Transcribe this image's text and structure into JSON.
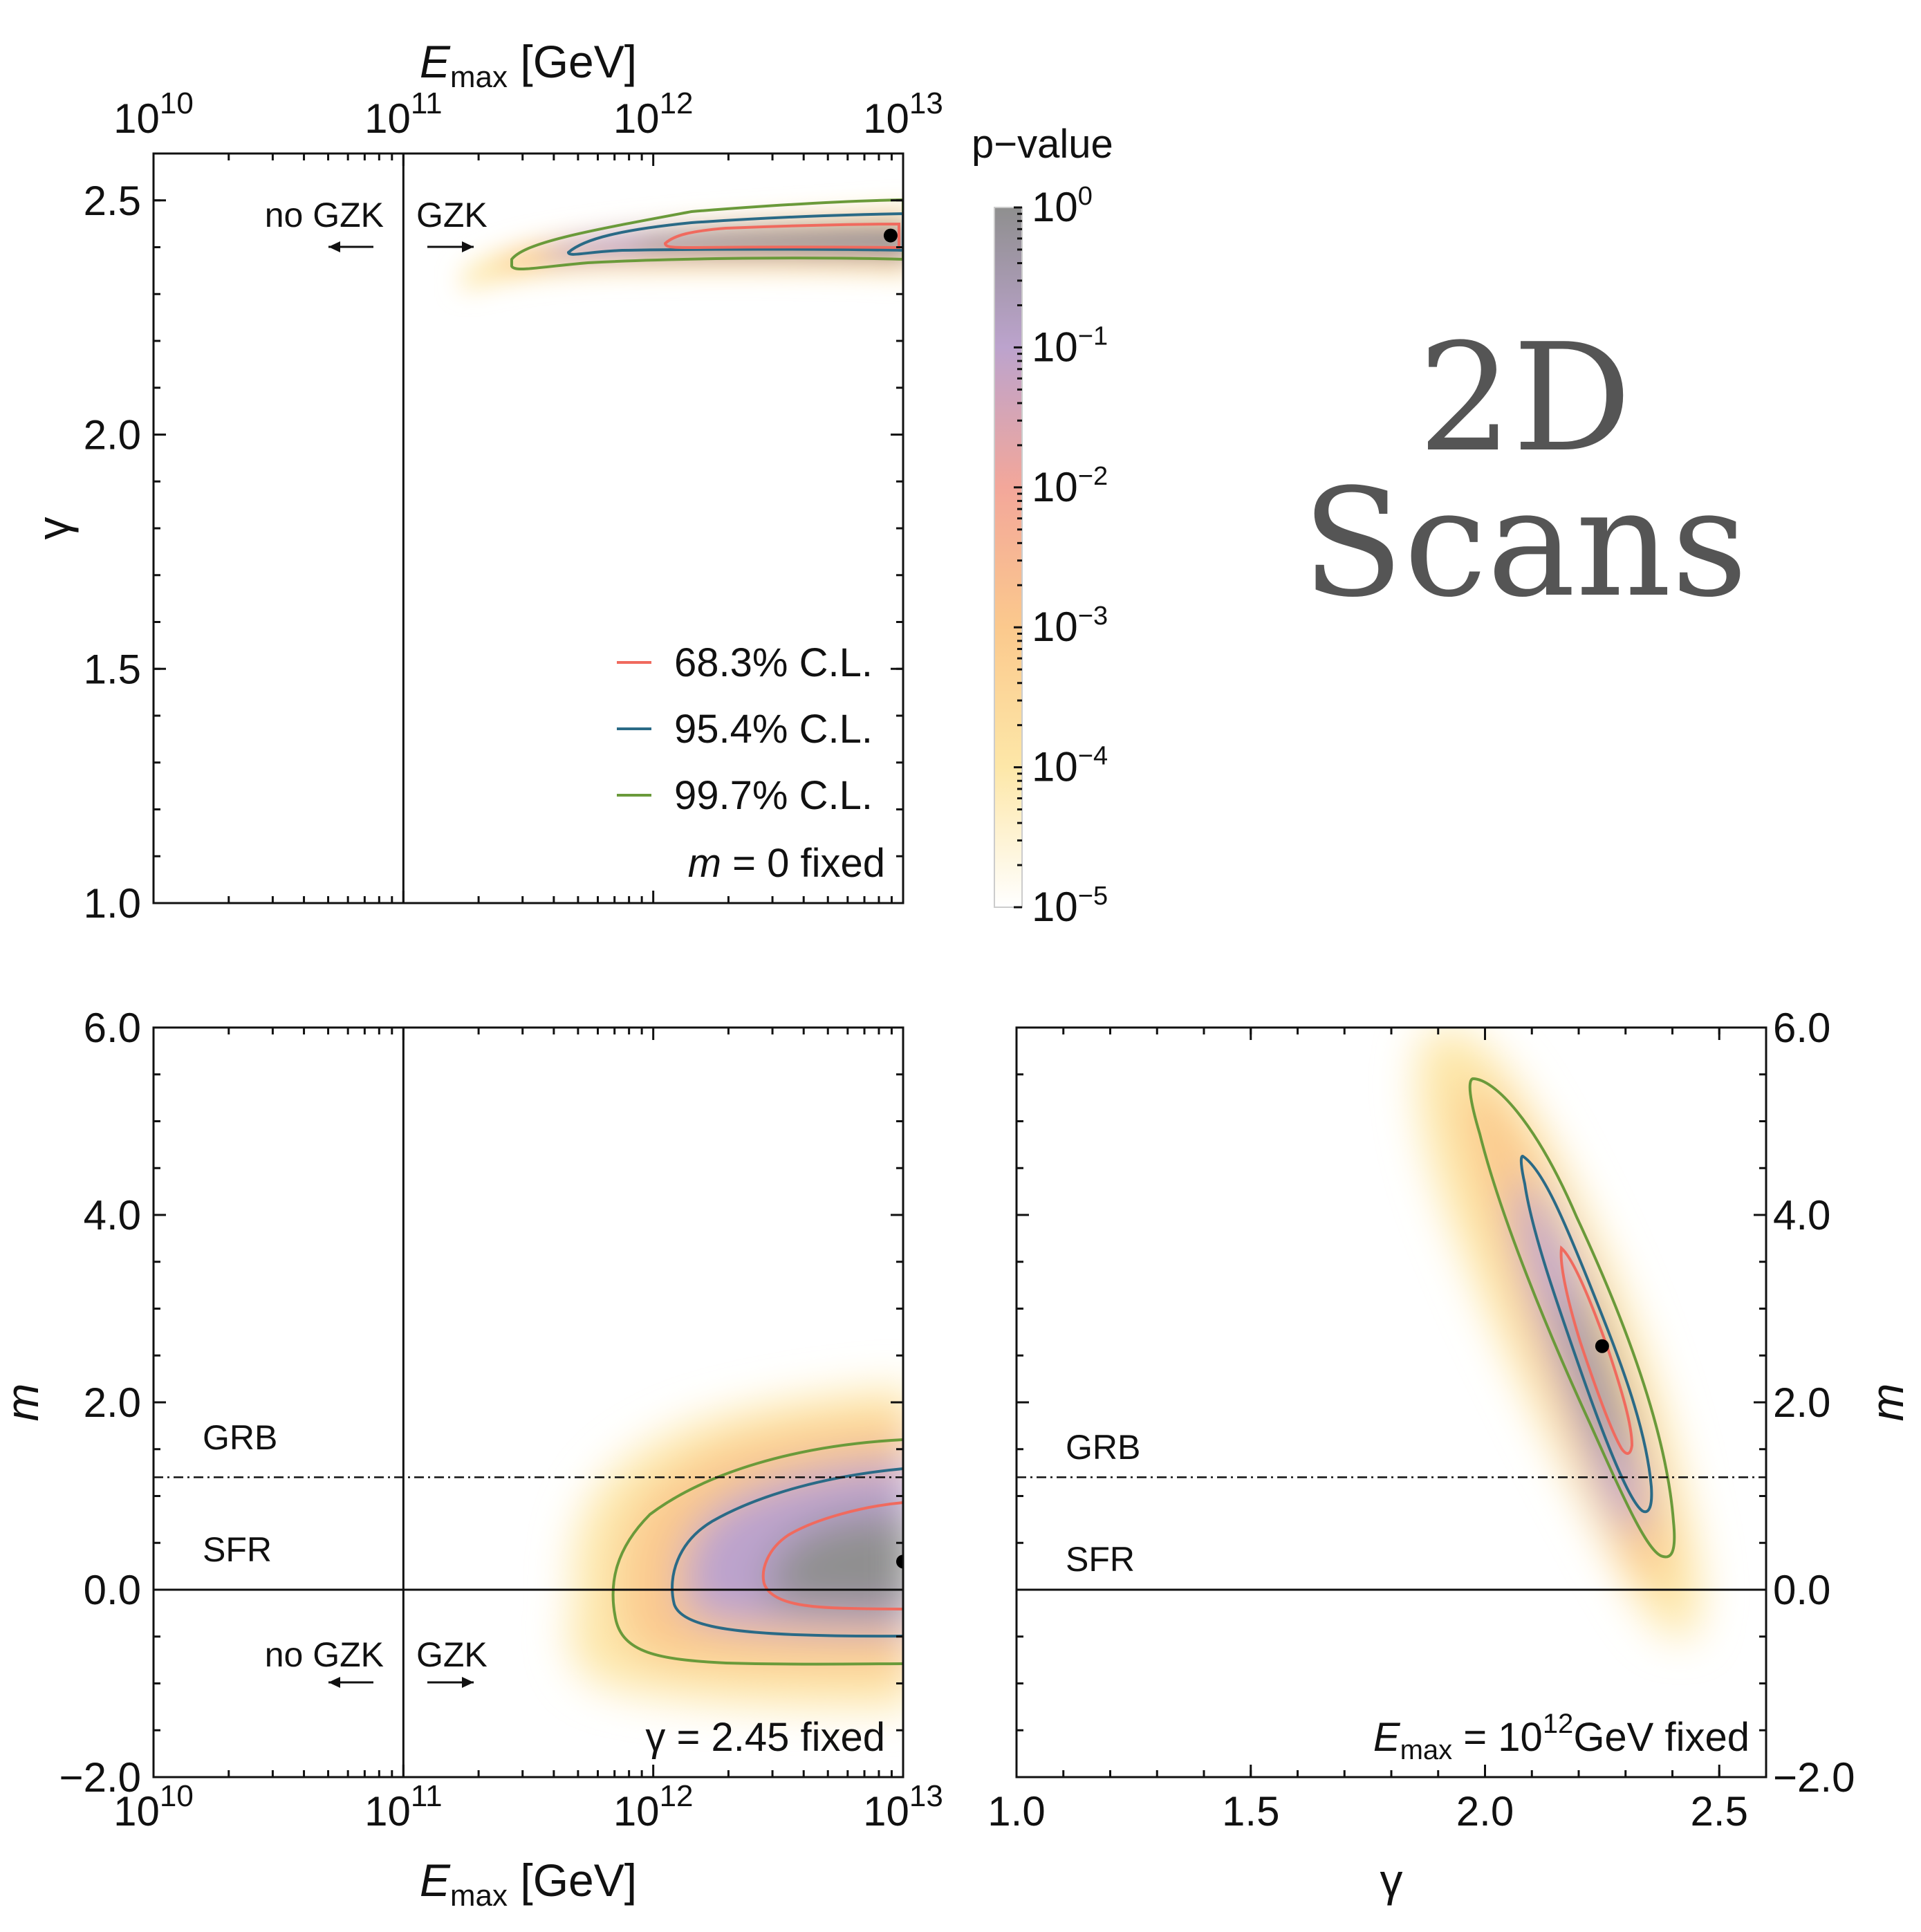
{
  "figure_title": {
    "line1": "2D",
    "line2": "Scans"
  },
  "colorbar": {
    "title": "p−value",
    "ticks": [
      {
        "base": "10",
        "exp": "0",
        "v": 0
      },
      {
        "base": "10",
        "exp": "−1",
        "v": -1
      },
      {
        "base": "10",
        "exp": "−2",
        "v": -2
      },
      {
        "base": "10",
        "exp": "−3",
        "v": -3
      },
      {
        "base": "10",
        "exp": "−4",
        "v": -4
      },
      {
        "base": "10",
        "exp": "−5",
        "v": -5
      }
    ],
    "colors": [
      "#ffffff",
      "#fde7a8",
      "#fbc98d",
      "#f3a79a",
      "#bca3cd",
      "#8f8f8f"
    ]
  },
  "legend": [
    {
      "label": "68.3% C.L.",
      "color": "#f06a5e"
    },
    {
      "label": "95.4% C.L.",
      "color": "#2a6a86"
    },
    {
      "label": "99.7% C.L.",
      "color": "#6a9a3a"
    }
  ],
  "gzk": {
    "left": "no GZK",
    "right": "GZK"
  },
  "ref_lines": {
    "grb_label": "GRB",
    "sfr_label": "SFR",
    "grb_m": 1.2,
    "sfr_m": 0.0
  },
  "chart_data": [
    {
      "id": "top-left",
      "type": "heatmap",
      "xlabel_main": "E",
      "xlabel_sub": "max",
      "xlabel_unit": " [GeV]",
      "ylabel": "γ",
      "xscale": "log",
      "xlim": [
        10,
        13
      ],
      "ylim": [
        1.0,
        2.6
      ],
      "xticks": [
        {
          "base": "10",
          "exp": "10",
          "v": 10
        },
        {
          "base": "10",
          "exp": "11",
          "v": 11
        },
        {
          "base": "10",
          "exp": "12",
          "v": 12
        },
        {
          "base": "10",
          "exp": "13",
          "v": 13
        }
      ],
      "yticks": [
        {
          "label": "1.0",
          "v": 1.0
        },
        {
          "label": "1.5",
          "v": 1.5
        },
        {
          "label": "2.0",
          "v": 2.0
        },
        {
          "label": "2.5",
          "v": 2.5
        }
      ],
      "best_fit": {
        "log10_Emax": 12.95,
        "gamma": 2.425
      },
      "annotation": {
        "italic": "m",
        "rest": " = 0 fixed"
      },
      "gzk_threshold_log10_Emax": 11
    },
    {
      "id": "bottom-left",
      "type": "heatmap",
      "xlabel_main": "E",
      "xlabel_sub": "max",
      "xlabel_unit": " [GeV]",
      "ylabel": "m",
      "xscale": "log",
      "xlim": [
        10,
        13
      ],
      "ylim": [
        -2.0,
        6.0
      ],
      "xticks": [
        {
          "base": "10",
          "exp": "10",
          "v": 10
        },
        {
          "base": "10",
          "exp": "11",
          "v": 11
        },
        {
          "base": "10",
          "exp": "12",
          "v": 12
        },
        {
          "base": "10",
          "exp": "13",
          "v": 13
        }
      ],
      "yticks": [
        {
          "label": "−2.0",
          "v": -2.0
        },
        {
          "label": "0.0",
          "v": 0.0
        },
        {
          "label": "2.0",
          "v": 2.0
        },
        {
          "label": "4.0",
          "v": 4.0
        },
        {
          "label": "6.0",
          "v": 6.0
        }
      ],
      "best_fit": {
        "log10_Emax": 13.0,
        "m": 0.3
      },
      "annotation": {
        "text": "γ = 2.45 fixed"
      },
      "gzk_threshold_log10_Emax": 11
    },
    {
      "id": "bottom-right",
      "type": "heatmap",
      "xlabel": "γ",
      "ylabel": "m",
      "xlim": [
        1.0,
        2.6
      ],
      "ylim": [
        -2.0,
        6.0
      ],
      "xticks": [
        {
          "label": "1.0",
          "v": 1.0
        },
        {
          "label": "1.5",
          "v": 1.5
        },
        {
          "label": "2.0",
          "v": 2.0
        },
        {
          "label": "2.5",
          "v": 2.5
        }
      ],
      "yticks": [
        {
          "label": "−2.0",
          "v": -2.0
        },
        {
          "label": "0.0",
          "v": 0.0
        },
        {
          "label": "2.0",
          "v": 2.0
        },
        {
          "label": "4.0",
          "v": 4.0
        },
        {
          "label": "6.0",
          "v": 6.0
        }
      ],
      "best_fit": {
        "gamma": 2.25,
        "m": 2.6
      },
      "annotation": {
        "italic": "E",
        "sub": "max",
        "rest1": " = 10",
        "sup": "12",
        "rest2": "GeV fixed"
      }
    }
  ]
}
